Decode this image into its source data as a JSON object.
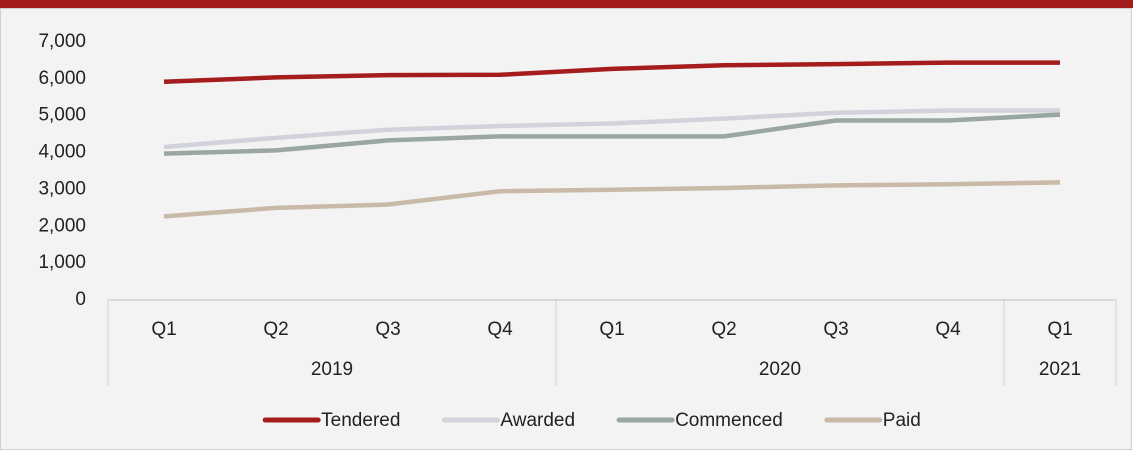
{
  "chart_data": {
    "type": "line",
    "groups": [
      {
        "name": "2019",
        "categories": [
          "Q1",
          "Q2",
          "Q3",
          "Q4"
        ]
      },
      {
        "name": "2020",
        "categories": [
          "Q1",
          "Q2",
          "Q3",
          "Q4"
        ]
      },
      {
        "name": "2021",
        "categories": [
          "Q1"
        ]
      }
    ],
    "series": [
      {
        "name": "Tendered",
        "color": "#a51c1c",
        "values": [
          5920,
          6040,
          6100,
          6110,
          6270,
          6370,
          6400,
          6440,
          6440
        ]
      },
      {
        "name": "Awarded",
        "color": "#d2d3da",
        "values": [
          4150,
          4400,
          4620,
          4720,
          4790,
          4920,
          5080,
          5140,
          5140
        ]
      },
      {
        "name": "Commenced",
        "color": "#9aa6a1",
        "values": [
          3970,
          4060,
          4330,
          4440,
          4440,
          4440,
          4870,
          4870,
          5030
        ]
      },
      {
        "name": "Paid",
        "color": "#c9baa8",
        "values": [
          2270,
          2500,
          2590,
          2950,
          2990,
          3040,
          3110,
          3140,
          3190
        ]
      }
    ],
    "ylim": [
      0,
      7000
    ],
    "yticks": [
      0,
      {
        "value": 1000,
        "label": "1,000"
      },
      {
        "value": 2000,
        "label": "2,000"
      },
      {
        "value": 3000,
        "label": "3,000"
      },
      {
        "value": 4000,
        "label": "4,000"
      },
      {
        "value": 5000,
        "label": "5,000"
      },
      {
        "value": 6000,
        "label": "6,000"
      },
      {
        "value": 7000,
        "label": "7,000"
      }
    ],
    "legend": "bottom"
  }
}
